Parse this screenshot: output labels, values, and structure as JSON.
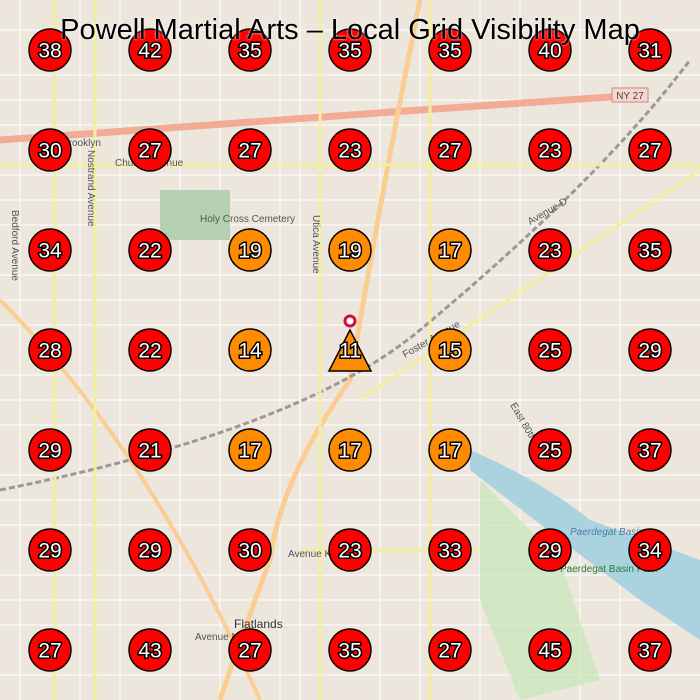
{
  "title": "Powell Martial Arts – Local Grid Visibility Map",
  "colors": {
    "high_rank": "#ff0000",
    "mid_rank": "#ff8c00",
    "outline": "#000000",
    "business_pin": "#d0103a"
  },
  "business_marker": {
    "icon": "map-pin-icon",
    "rank": "11",
    "shape": "triangle"
  },
  "grid": [
    [
      "38",
      "42",
      "35",
      "35",
      "35",
      "40",
      "31"
    ],
    [
      "30",
      "27",
      "27",
      "23",
      "27",
      "23",
      "27"
    ],
    [
      "34",
      "22",
      "19",
      "19",
      "17",
      "23",
      "35"
    ],
    [
      "28",
      "22",
      "14",
      "11",
      "15",
      "25",
      "29"
    ],
    [
      "29",
      "21",
      "17",
      "17",
      "17",
      "25",
      "37"
    ],
    [
      "29",
      "29",
      "30",
      "23",
      "33",
      "29",
      "34"
    ],
    [
      "27",
      "43",
      "27",
      "35",
      "27",
      "45",
      "37"
    ]
  ],
  "map_labels": {
    "brooklyn": "Brooklyn",
    "cemetery": "Holy Cross Cemetery",
    "utica": "Utica Avenue",
    "nostrand": "Nostrand Avenue",
    "bedford": "Bedford Avenue",
    "foster": "Foster Avenue",
    "avenue_k": "Avenue K",
    "avenue_d": "Avenue D",
    "avenue_m": "Avenue M",
    "flatlands": "Flatlands",
    "paerdegat": "Paerdegat Basin Park",
    "basin": "Paerdegat Basin",
    "ny27": "NY 27",
    "east80": "East 80th",
    "church": "Church Avenue"
  }
}
